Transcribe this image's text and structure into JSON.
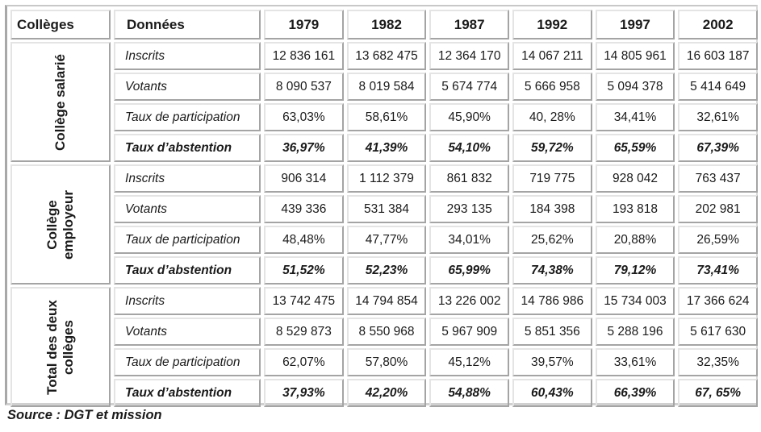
{
  "header": {
    "colleges": "Collèges",
    "donnees": "Données",
    "years": [
      "1979",
      "1982",
      "1987",
      "1992",
      "1997",
      "2002"
    ]
  },
  "groups": [
    {
      "name_lines": [
        "Collège salarié"
      ],
      "rows": [
        {
          "label": "Inscrits",
          "values": [
            "12 836 161",
            "13 682 475",
            "12 364 170",
            "14 067 211",
            "14 805 961",
            "16 603 187"
          ]
        },
        {
          "label": "Votants",
          "values": [
            "8 090 537",
            "8 019 584",
            "5 674 774",
            "5 666 958",
            "5 094 378",
            "5 414 649"
          ]
        },
        {
          "label": "Taux de participation",
          "values": [
            "63,03%",
            "58,61%",
            "45,90%",
            "40, 28%",
            "34,41%",
            "32,61%"
          ]
        },
        {
          "label": "Taux d’abstention",
          "values": [
            "36,97%",
            "41,39%",
            "54,10%",
            "59,72%",
            "65,59%",
            "67,39%"
          ]
        }
      ]
    },
    {
      "name_lines": [
        "Collège",
        "employeur"
      ],
      "rows": [
        {
          "label": "Inscrits",
          "values": [
            "906 314",
            "1 112 379",
            "861 832",
            "719 775",
            "928 042",
            "763 437"
          ]
        },
        {
          "label": "Votants",
          "values": [
            "439 336",
            "531 384",
            "293 135",
            "184 398",
            "193 818",
            "202 981"
          ]
        },
        {
          "label": "Taux de participation",
          "values": [
            "48,48%",
            "47,77%",
            "34,01%",
            "25,62%",
            "20,88%",
            "26,59%"
          ]
        },
        {
          "label": "Taux d’abstention",
          "values": [
            "51,52%",
            "52,23%",
            "65,99%",
            "74,38%",
            "79,12%",
            "73,41%"
          ]
        }
      ]
    },
    {
      "name_lines": [
        "Total des deux",
        "collèges"
      ],
      "rows": [
        {
          "label": "Inscrits",
          "values": [
            "13 742 475",
            "14 794 854",
            "13 226 002",
            "14 786 986",
            "15 734 003",
            "17 366 624"
          ]
        },
        {
          "label": "Votants",
          "values": [
            "8 529 873",
            "8 550 968",
            "5 967 909",
            "5 851 356",
            "5 288 196",
            "5 617 630"
          ]
        },
        {
          "label": "Taux de participation",
          "values": [
            "62,07%",
            "57,80%",
            "45,12%",
            "39,57%",
            "33,61%",
            "32,35%"
          ]
        },
        {
          "label": "Taux d’abstention",
          "values": [
            "37,93%",
            "42,20%",
            "54,88%",
            "60,43%",
            "66,39%",
            "67, 65%"
          ]
        }
      ]
    }
  ],
  "source": "Source : DGT et mission"
}
